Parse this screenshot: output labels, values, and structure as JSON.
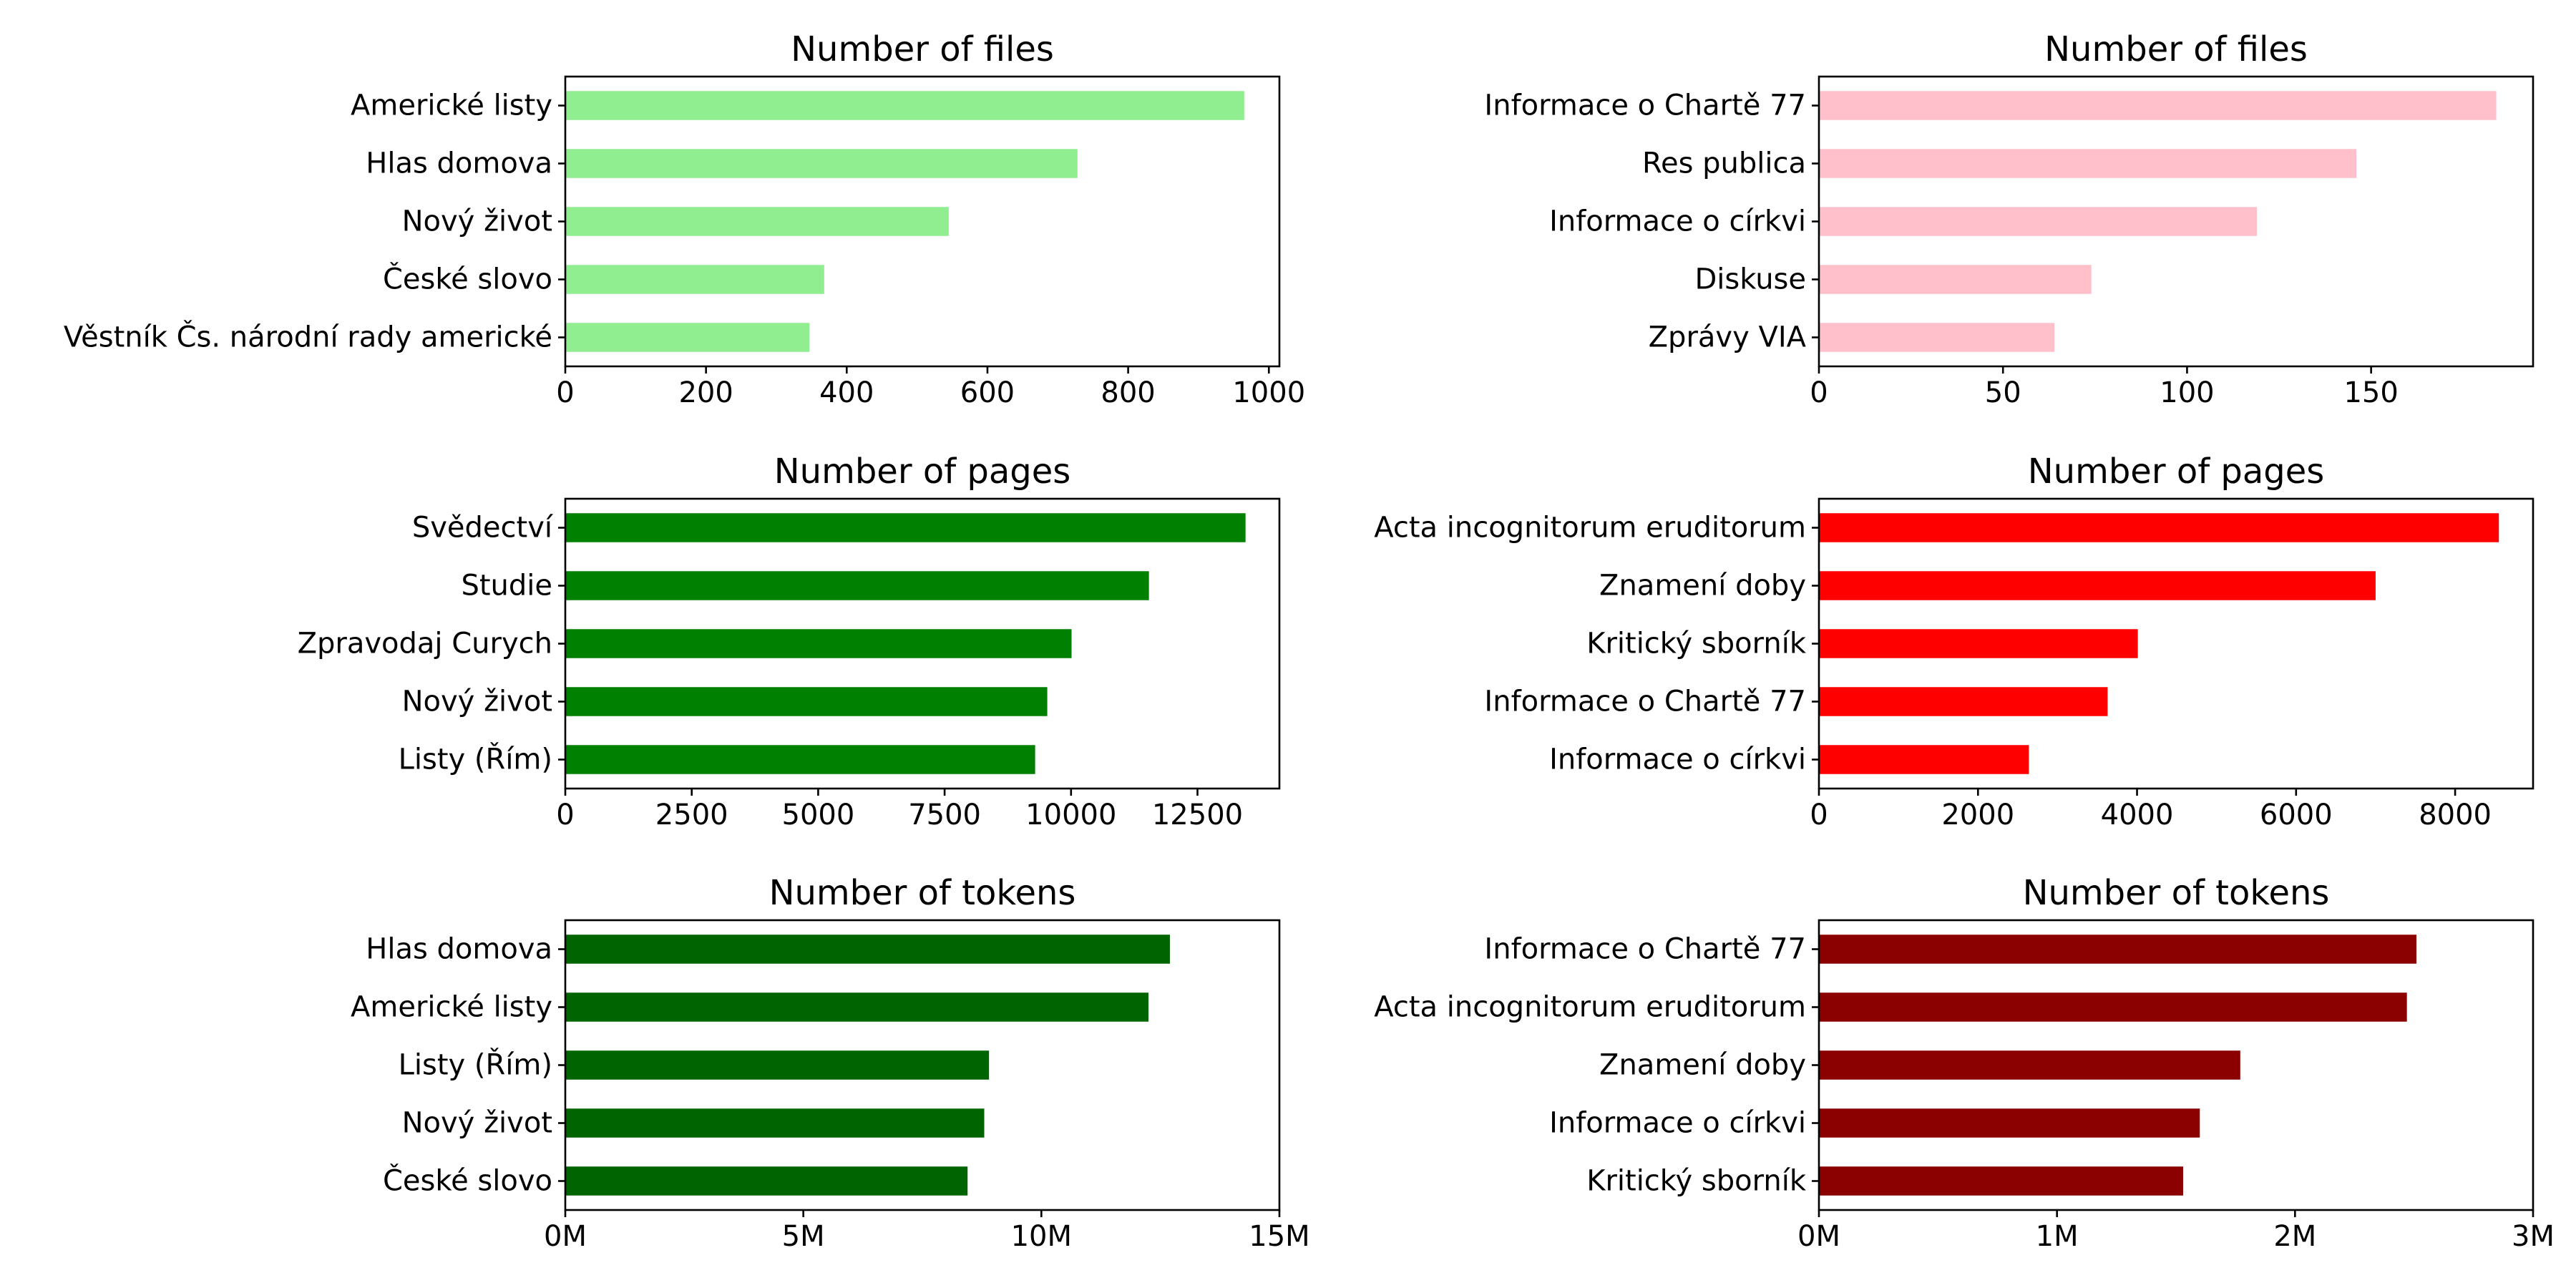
{
  "chart_data": [
    {
      "type": "bar",
      "orientation": "horizontal",
      "title": "Number of files",
      "categories": [
        "Americké listy",
        "Hlas domova",
        "Nový život",
        "České slovo",
        "Věstník Čs. národní rady americké"
      ],
      "values": [
        965,
        728,
        545,
        368,
        347
      ],
      "xlim": [
        0,
        1015
      ],
      "xticks": [
        0,
        200,
        400,
        600,
        800,
        1000
      ],
      "xtick_labels": [
        "0",
        "200",
        "400",
        "600",
        "800",
        "1000"
      ],
      "color": "#90ee90",
      "grid": false
    },
    {
      "type": "bar",
      "orientation": "horizontal",
      "title": "Number of files",
      "categories": [
        "Informace o Chartě 77",
        "Res publica",
        "Informace o církvi",
        "Diskuse",
        "Zprávy VIA"
      ],
      "values": [
        184,
        146,
        119,
        74,
        64
      ],
      "xlim": [
        0,
        194
      ],
      "xticks": [
        0,
        50,
        100,
        150
      ],
      "xtick_labels": [
        "0",
        "50",
        "100",
        "150"
      ],
      "color": "#ffc0cb",
      "grid": false
    },
    {
      "type": "bar",
      "orientation": "horizontal",
      "title": "Number of pages",
      "categories": [
        "Svědectví",
        "Studie",
        "Zpravodaj Curych",
        "Nový život",
        "Listy (Řím)"
      ],
      "values": [
        13450,
        11540,
        10010,
        9530,
        9290
      ],
      "xlim": [
        0,
        14120
      ],
      "xticks": [
        0,
        2500,
        5000,
        7500,
        10000,
        12500
      ],
      "xtick_labels": [
        "0",
        "2500",
        "5000",
        "7500",
        "10000",
        "12500"
      ],
      "color": "#008000",
      "grid": false
    },
    {
      "type": "bar",
      "orientation": "horizontal",
      "title": "Number of pages",
      "categories": [
        "Acta incognitorum eruditorum",
        "Znamení doby",
        "Kritický sborník",
        "Informace o Chartě 77",
        "Informace o církvi"
      ],
      "values": [
        8550,
        7000,
        4010,
        3630,
        2640
      ],
      "xlim": [
        0,
        8980
      ],
      "xticks": [
        0,
        2000,
        4000,
        6000,
        8000
      ],
      "xtick_labels": [
        "0",
        "2000",
        "4000",
        "6000",
        "8000"
      ],
      "color": "#ff0000",
      "grid": false
    },
    {
      "type": "bar",
      "orientation": "horizontal",
      "title": "Number of tokens",
      "categories": [
        "Hlas domova",
        "Americké listy",
        "Listy (Řím)",
        "Nový život",
        "České slovo"
      ],
      "values": [
        12700000,
        12250000,
        8900000,
        8800000,
        8450000
      ],
      "xlim": [
        0,
        15000000
      ],
      "xticks": [
        0,
        5000000,
        10000000,
        15000000
      ],
      "xtick_labels": [
        "0M",
        "5M",
        "10M",
        "15M"
      ],
      "color": "#006400",
      "grid": false
    },
    {
      "type": "bar",
      "orientation": "horizontal",
      "title": "Number of tokens",
      "categories": [
        "Informace o Chartě 77",
        "Acta incognitorum eruditorum",
        "Znamení doby",
        "Informace o církvi",
        "Kritický sborník"
      ],
      "values": [
        2510000,
        2470000,
        1770000,
        1600000,
        1530000
      ],
      "xlim": [
        0,
        3000000
      ],
      "xticks": [
        0,
        1000000,
        2000000,
        3000000
      ],
      "xtick_labels": [
        "0M",
        "1M",
        "2M",
        "3M"
      ],
      "color": "#8b0000",
      "grid": false
    }
  ]
}
